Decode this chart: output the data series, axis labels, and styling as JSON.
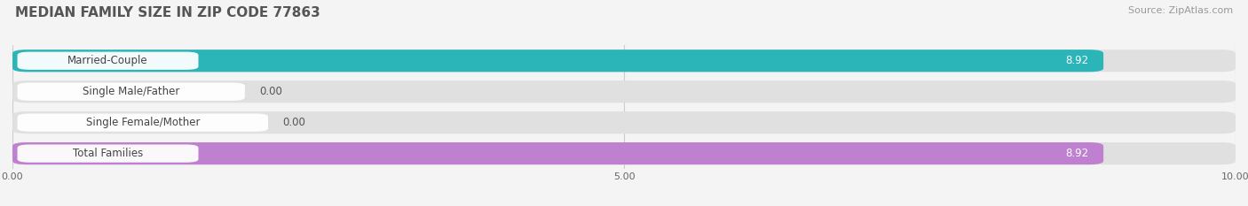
{
  "title": "MEDIAN FAMILY SIZE IN ZIP CODE 77863",
  "source": "Source: ZipAtlas.com",
  "categories": [
    "Married-Couple",
    "Single Male/Father",
    "Single Female/Mother",
    "Total Families"
  ],
  "values": [
    8.92,
    0.0,
    0.0,
    8.92
  ],
  "bar_colors": [
    "#2bb5b8",
    "#a0aee8",
    "#f0a0b8",
    "#c080d0"
  ],
  "xlim": [
    0,
    10.0
  ],
  "xticks": [
    0.0,
    5.0,
    10.0
  ],
  "xtick_labels": [
    "0.00",
    "5.00",
    "10.00"
  ],
  "bar_height": 0.72,
  "figsize": [
    14.06,
    2.33
  ],
  "dpi": 100,
  "bg_color": "#f4f4f4",
  "bar_bg_color": "#e0e0e0",
  "value_label_fontsize": 8.5,
  "cat_label_fontsize": 8.5,
  "title_fontsize": 11,
  "source_fontsize": 8
}
